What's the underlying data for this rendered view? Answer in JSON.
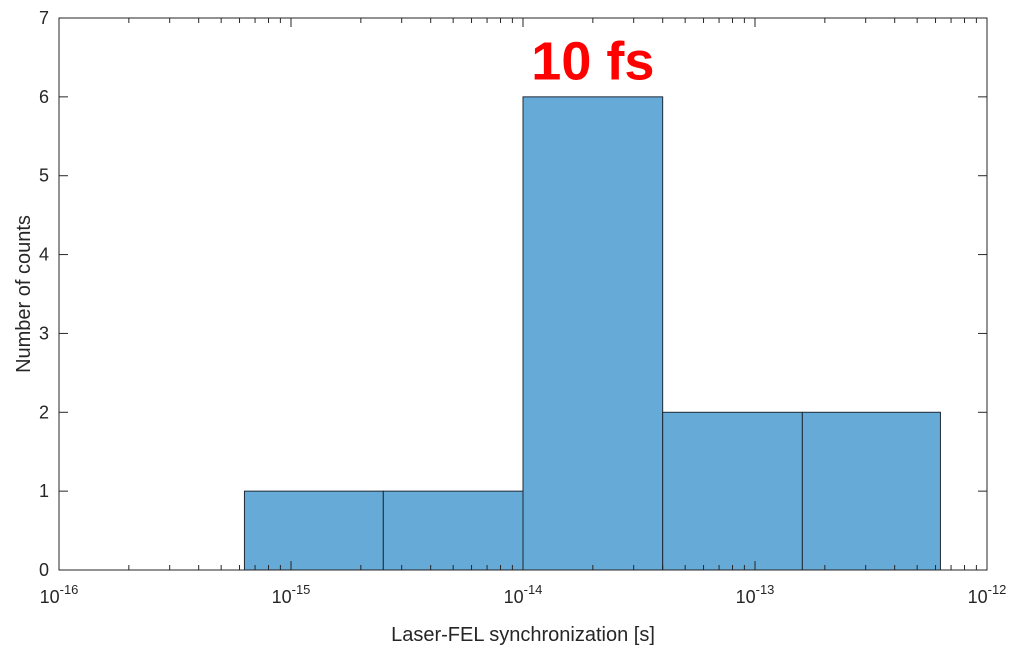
{
  "chart_data": {
    "type": "bar",
    "subtype": "histogram",
    "xscale": "log",
    "xlim": [
      1e-16,
      1e-12
    ],
    "ylim": [
      0,
      7
    ],
    "bins": [
      {
        "left": 6.3e-16,
        "right": 2.5e-15,
        "count": 1
      },
      {
        "left": 2.5e-15,
        "right": 1e-14,
        "count": 1
      },
      {
        "left": 1e-14,
        "right": 4e-14,
        "count": 6
      },
      {
        "left": 4e-14,
        "right": 1.6e-13,
        "count": 2
      },
      {
        "left": 1.6e-13,
        "right": 6.3e-13,
        "count": 2
      }
    ],
    "xticks": [
      {
        "value": 1e-16,
        "base": "10",
        "exp": "-16"
      },
      {
        "value": 1e-15,
        "base": "10",
        "exp": "-15"
      },
      {
        "value": 1e-14,
        "base": "10",
        "exp": "-14"
      },
      {
        "value": 1e-13,
        "base": "10",
        "exp": "-13"
      },
      {
        "value": 1e-12,
        "base": "10",
        "exp": "-12"
      }
    ],
    "yticks": [
      {
        "value": 0,
        "label": "0"
      },
      {
        "value": 1,
        "label": "1"
      },
      {
        "value": 2,
        "label": "2"
      },
      {
        "value": 3,
        "label": "3"
      },
      {
        "value": 4,
        "label": "4"
      },
      {
        "value": 5,
        "label": "5"
      },
      {
        "value": 6,
        "label": "6"
      },
      {
        "value": 7,
        "label": "7"
      }
    ],
    "xlabel": "Laser-FEL synchronization [s]",
    "ylabel": "Number of counts",
    "annotation": {
      "text": "10 fs",
      "x": 2e-14,
      "y": 6.45,
      "color": "#ff0000"
    },
    "bar_color": "#66aad7",
    "edge_color": "#1f2a36",
    "grid": false,
    "legend": "none"
  }
}
